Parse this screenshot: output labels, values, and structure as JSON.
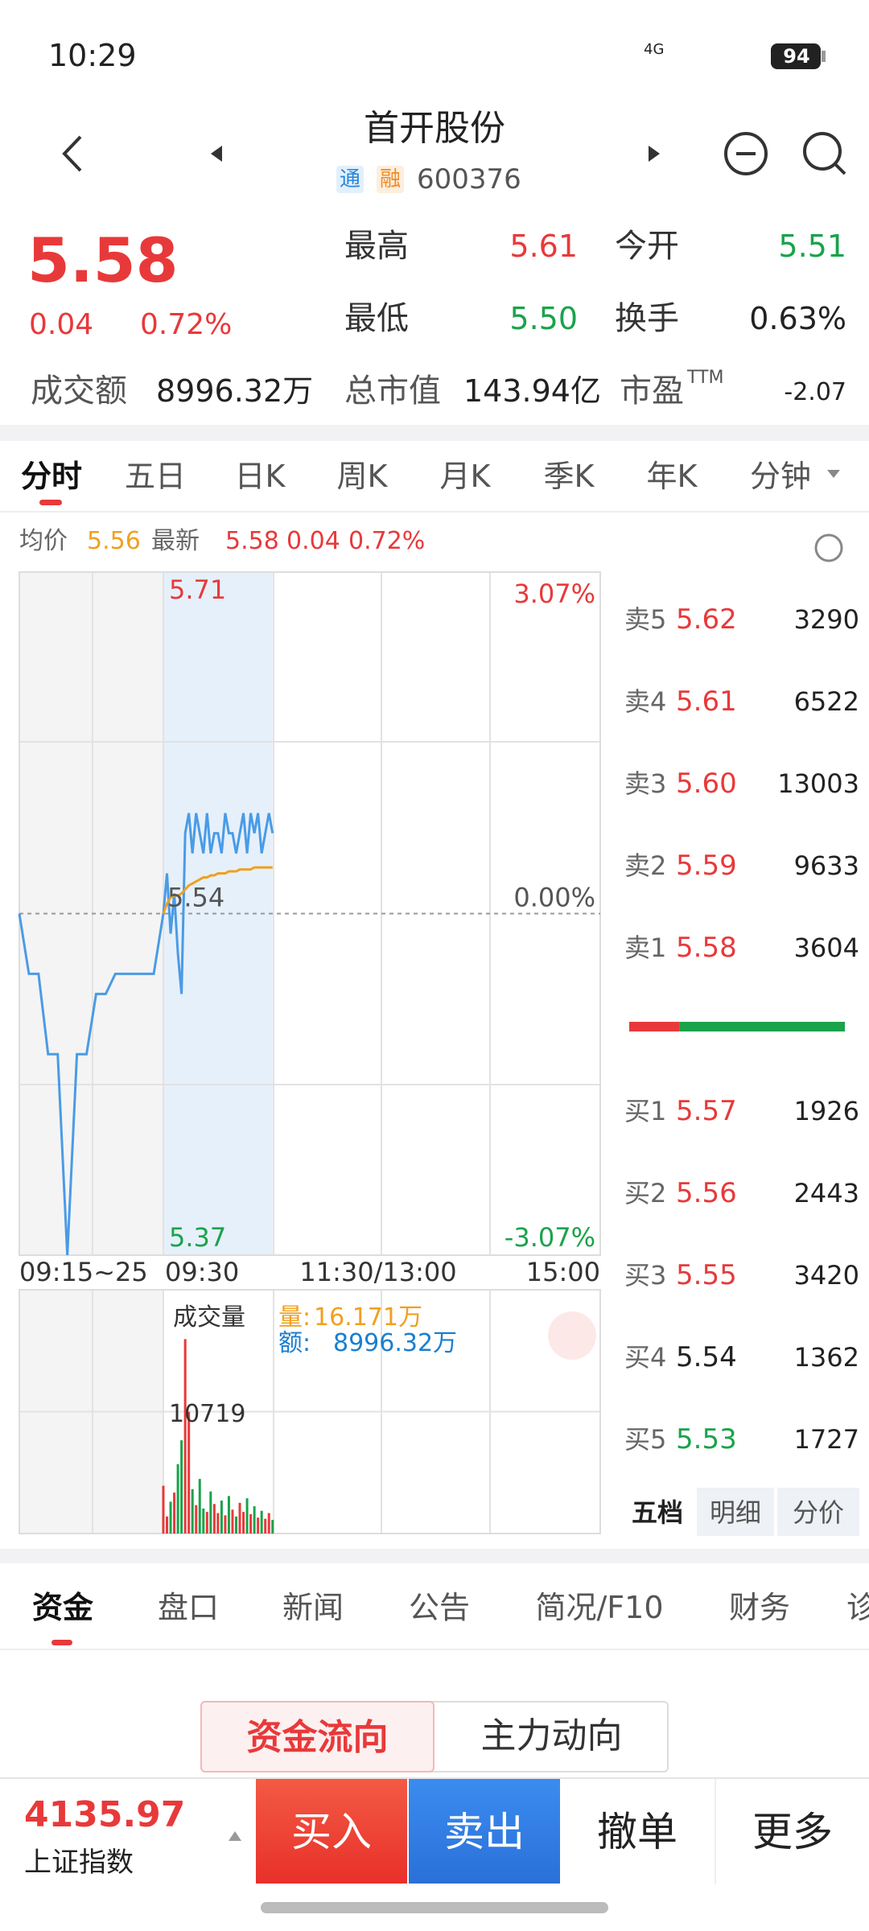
{
  "status_bar": {
    "time": "10:29",
    "network": "4G",
    "battery": "94"
  },
  "header": {
    "title": "首开股份",
    "tags": [
      "通",
      "融"
    ],
    "code": "600376"
  },
  "quote": {
    "price": "5.58",
    "change": "0.04",
    "change_pct": "0.72%",
    "stats": [
      {
        "label": "最高",
        "value": "5.61"
      },
      {
        "label": "今开",
        "value": "5.51"
      },
      {
        "label": "最低",
        "value": "5.50"
      },
      {
        "label": "换手",
        "value": "0.63%"
      }
    ],
    "bottom": [
      {
        "label": "成交额",
        "value": "8996.32万"
      },
      {
        "label": "总市值",
        "value": "143.94亿"
      },
      {
        "label": "市盈",
        "sup": "TTM",
        "value": "-2.07"
      }
    ]
  },
  "tabs": [
    "分时",
    "五日",
    "日K",
    "周K",
    "月K",
    "季K",
    "年K",
    "分钟"
  ],
  "chart": {
    "legend": {
      "avg_label": "均价",
      "avg": "5.56",
      "latest_label": "最新",
      "latest": "5.58",
      "change": "0.04",
      "change_pct": "0.72%"
    },
    "ylim": [
      5.37,
      5.71
    ],
    "prev_close": 5.54,
    "up_pct": "3.07%",
    "mid_pct": "0.00%",
    "down_pct": "-3.07%",
    "xlabels": [
      "09:15~25",
      "09:30",
      "11:30/13:00",
      "15:00"
    ],
    "auction": [
      5.54,
      5.51,
      5.51,
      5.47,
      5.47,
      5.37,
      5.47,
      5.47,
      5.5,
      5.5,
      5.51,
      5.51,
      5.51,
      5.51,
      5.51,
      5.54
    ],
    "price": [
      5.54,
      5.56,
      5.53,
      5.55,
      5.52,
      5.5,
      5.58,
      5.59,
      5.57,
      5.59,
      5.58,
      5.57,
      5.59,
      5.57,
      5.58,
      5.58,
      5.57,
      5.59,
      5.58,
      5.58,
      5.57,
      5.58,
      5.59,
      5.57,
      5.59,
      5.58,
      5.59,
      5.57,
      5.58,
      5.59,
      5.58
    ],
    "avg": [
      5.54,
      5.545,
      5.548,
      5.549,
      5.549,
      5.55,
      5.552,
      5.554,
      5.555,
      5.556,
      5.557,
      5.558,
      5.558,
      5.559,
      5.559,
      5.56,
      5.56,
      5.56,
      5.561,
      5.561,
      5.561,
      5.562,
      5.562,
      5.562,
      5.562,
      5.563,
      5.563,
      5.563,
      5.563,
      5.563,
      5.563
    ],
    "volume": {
      "title": "成交量",
      "amount_label": "量:",
      "amount": "16.171万",
      "turnover_label": "额:",
      "turnover": "8996.32万",
      "grid": 10719,
      "ylim": [
        0,
        21438
      ],
      "values": [
        4200,
        1500,
        2800,
        3600,
        6100,
        8200,
        17100,
        10700,
        3900,
        2500,
        4800,
        2200,
        1900,
        3700,
        2600,
        1800,
        2900,
        1600,
        3300,
        2100,
        1500,
        2700,
        1900,
        3100,
        1700,
        2400,
        1400,
        2000,
        1300,
        1800,
        1200
      ]
    }
  },
  "order_book": {
    "asks": [
      {
        "label": "卖5",
        "price": "5.62",
        "volume": 3290
      },
      {
        "label": "卖4",
        "price": "5.61",
        "volume": 6522
      },
      {
        "label": "卖3",
        "price": "5.60",
        "volume": 13003
      },
      {
        "label": "卖2",
        "price": "5.59",
        "volume": 9633
      },
      {
        "label": "卖1",
        "price": "5.58",
        "volume": 3604
      }
    ],
    "bids": [
      {
        "label": "买1",
        "price": "5.57",
        "volume": 1926
      },
      {
        "label": "买2",
        "price": "5.56",
        "volume": 2443
      },
      {
        "label": "买3",
        "price": "5.55",
        "volume": 3420
      },
      {
        "label": "买4",
        "price": "5.54",
        "volume": 1362
      },
      {
        "label": "买5",
        "price": "5.53",
        "volume": 1727
      }
    ],
    "tabs": [
      "五档",
      "明细",
      "分价"
    ]
  },
  "bottom_tabs": [
    "资金",
    "盘口",
    "新闻",
    "公告",
    "简况/F10",
    "财务",
    "诊"
  ],
  "fund_tabs": [
    "资金流向",
    "主力动向"
  ],
  "footer": {
    "index_value": "4135.97",
    "index_name": "上证指数",
    "buttons": [
      "买入",
      "卖出",
      "撤单",
      "更多"
    ]
  }
}
